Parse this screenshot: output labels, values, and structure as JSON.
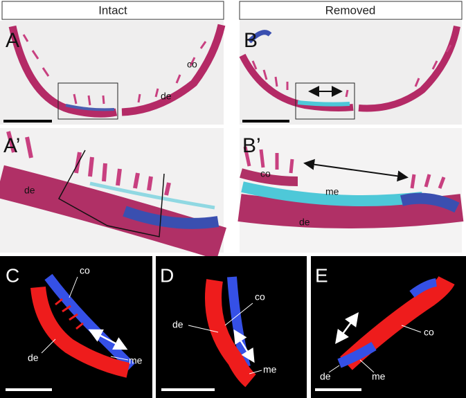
{
  "headers": [
    "Intact",
    "Removed"
  ],
  "panels": [
    {
      "label": "A",
      "annotations": [
        "co",
        "de"
      ]
    },
    {
      "label": "B"
    },
    {
      "label": "A’",
      "annotations": [
        "de"
      ]
    },
    {
      "label": "B’",
      "annotations": [
        "co",
        "me",
        "de"
      ]
    },
    {
      "label": "C",
      "annotations": [
        "co",
        "de",
        "me"
      ]
    },
    {
      "label": "D",
      "annotations": [
        "co",
        "de",
        "me"
      ]
    },
    {
      "label": "E",
      "annotations": [
        "co",
        "de",
        "me"
      ]
    }
  ]
}
